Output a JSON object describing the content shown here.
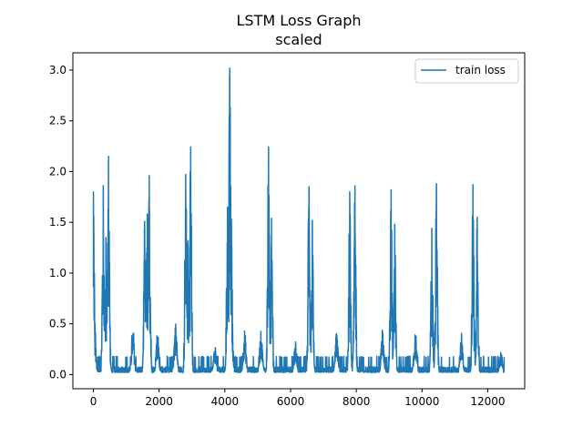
{
  "chart_data": {
    "type": "line",
    "title": "LSTM Loss Graph",
    "subtitle": "scaled",
    "xlabel": "",
    "ylabel": "",
    "xlim": [
      -625,
      13125
    ],
    "ylim": [
      -0.14,
      3.17
    ],
    "x_ticks": [
      0,
      2000,
      4000,
      6000,
      8000,
      10000,
      12000
    ],
    "y_ticks": [
      0.0,
      0.5,
      1.0,
      1.5,
      2.0,
      2.5,
      3.0
    ],
    "x_tick_labels": [
      "0",
      "2000",
      "4000",
      "6000",
      "8000",
      "10000",
      "12000"
    ],
    "y_tick_labels": [
      "0.0",
      "0.5",
      "1.0",
      "1.5",
      "2.0",
      "2.5",
      "3.0"
    ],
    "grid": false,
    "legend": {
      "placement": "top-right",
      "entries": [
        "train loss"
      ]
    },
    "series": [
      {
        "name": "train loss",
        "color": "#1f77b4",
        "x_range": [
          0,
          12500
        ],
        "baseline": 0.02,
        "noise_max": 0.1,
        "bumps": [
          {
            "x": 1200,
            "y": 0.47
          },
          {
            "x": 1950,
            "y": 0.44
          },
          {
            "x": 2500,
            "y": 0.53
          },
          {
            "x": 3700,
            "y": 0.3
          },
          {
            "x": 4600,
            "y": 0.45
          },
          {
            "x": 5100,
            "y": 0.43
          },
          {
            "x": 6150,
            "y": 0.33
          },
          {
            "x": 7400,
            "y": 0.43
          },
          {
            "x": 8800,
            "y": 0.45
          },
          {
            "x": 9800,
            "y": 0.44
          },
          {
            "x": 11200,
            "y": 0.42
          },
          {
            "x": 12400,
            "y": 0.25
          }
        ],
        "spikes": [
          {
            "x": 0,
            "y": 1.8
          },
          {
            "x": 50,
            "y": 0.5
          },
          {
            "x": 300,
            "y": 1.86
          },
          {
            "x": 380,
            "y": 1.35
          },
          {
            "x": 460,
            "y": 2.15
          },
          {
            "x": 1560,
            "y": 1.51
          },
          {
            "x": 1640,
            "y": 1.58
          },
          {
            "x": 1700,
            "y": 1.96
          },
          {
            "x": 2810,
            "y": 1.97
          },
          {
            "x": 2880,
            "y": 1.32
          },
          {
            "x": 2960,
            "y": 2.24
          },
          {
            "x": 4080,
            "y": 1.65
          },
          {
            "x": 4150,
            "y": 3.02
          },
          {
            "x": 4200,
            "y": 1.53
          },
          {
            "x": 5330,
            "y": 2.24
          },
          {
            "x": 5420,
            "y": 1.54
          },
          {
            "x": 6560,
            "y": 1.85
          },
          {
            "x": 6660,
            "y": 1.52
          },
          {
            "x": 7800,
            "y": 1.8
          },
          {
            "x": 7960,
            "y": 1.86
          },
          {
            "x": 9060,
            "y": 1.82
          },
          {
            "x": 9170,
            "y": 1.48
          },
          {
            "x": 10300,
            "y": 1.44
          },
          {
            "x": 10440,
            "y": 1.88
          },
          {
            "x": 11550,
            "y": 1.87
          },
          {
            "x": 11680,
            "y": 1.55
          }
        ]
      }
    ]
  }
}
